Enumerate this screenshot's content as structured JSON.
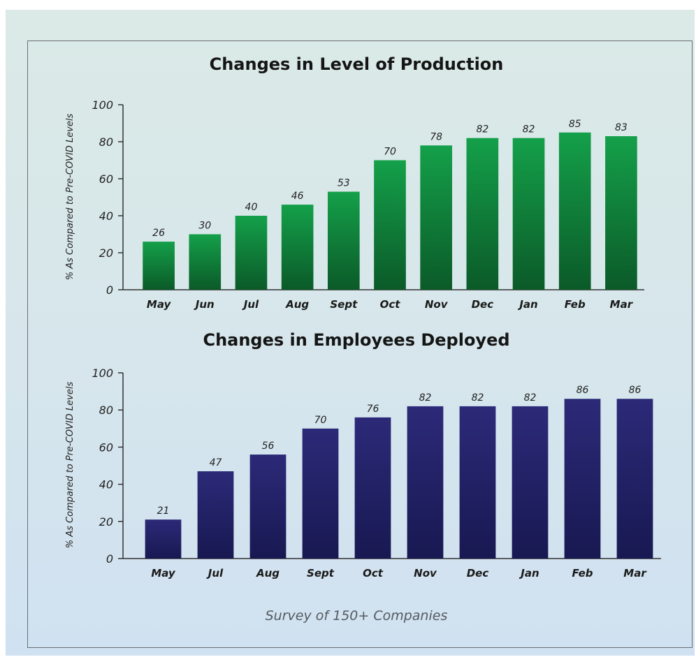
{
  "colors": {
    "production_bar_top": "#14a04a",
    "production_bar_bottom": "#0b5a28",
    "employees_bar_top": "#2c2a78",
    "employees_bar_bottom": "#181852",
    "axis": "#333333"
  },
  "footer": "Survey of 150+ Companies",
  "chart_data": [
    {
      "type": "bar",
      "title": "Changes in Level of Production",
      "xlabel": "",
      "ylabel": "% As Compared to Pre-COVID Levels",
      "categories": [
        "May",
        "Jun",
        "Jul",
        "Aug",
        "Sept",
        "Oct",
        "Nov",
        "Dec",
        "Jan",
        "Feb",
        "Mar"
      ],
      "values": [
        26,
        30,
        40,
        46,
        53,
        70,
        78,
        82,
        82,
        85,
        83
      ],
      "ylim": [
        0,
        100
      ],
      "yticks": [
        0,
        20,
        40,
        60,
        80,
        100
      ],
      "grid": false,
      "data_labels": true
    },
    {
      "type": "bar",
      "title": "Changes in Employees Deployed",
      "xlabel": "",
      "ylabel": "% As Compared to Pre-COVID Levels",
      "categories": [
        "May",
        "Jul",
        "Aug",
        "Sept",
        "Oct",
        "Nov",
        "Dec",
        "Jan",
        "Feb",
        "Mar"
      ],
      "values": [
        21,
        47,
        56,
        70,
        76,
        82,
        82,
        82,
        86,
        86
      ],
      "ylim": [
        0,
        100
      ],
      "yticks": [
        0,
        20,
        40,
        60,
        80,
        100
      ],
      "grid": false,
      "data_labels": true
    }
  ]
}
